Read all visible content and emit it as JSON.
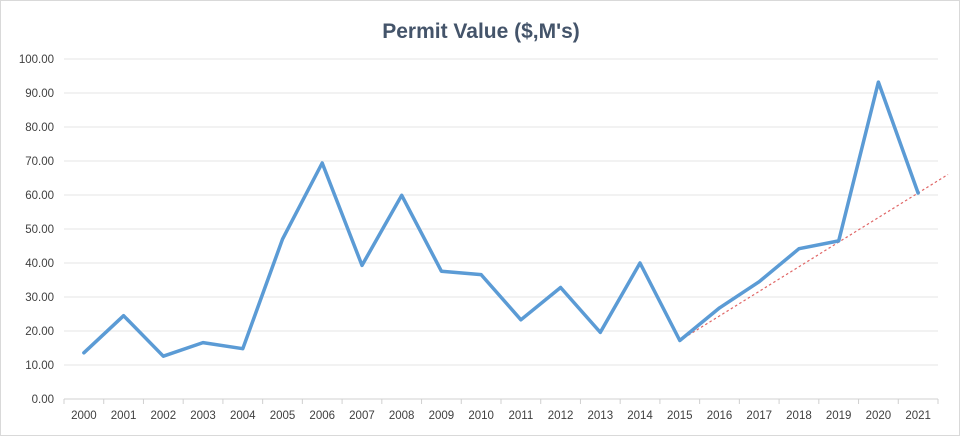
{
  "chart_data": {
    "type": "line",
    "title": "Permit Value ($,M's)",
    "xlabel": "",
    "ylabel": "",
    "categories": [
      "2000",
      "2001",
      "2002",
      "2003",
      "2004",
      "2005",
      "2006",
      "2007",
      "2008",
      "2009",
      "2010",
      "2011",
      "2012",
      "2013",
      "2014",
      "2015",
      "2016",
      "2017",
      "2018",
      "2019",
      "2020",
      "2021"
    ],
    "series": [
      {
        "values": [
          13.6,
          24.5,
          12.6,
          16.6,
          14.8,
          47.0,
          69.4,
          39.3,
          59.9,
          37.6,
          36.6,
          23.3,
          32.8,
          19.6,
          40.0,
          17.2,
          26.8,
          34.5,
          44.2,
          46.5,
          93.2,
          60.6
        ],
        "color": "#5b9bd5"
      }
    ],
    "trendline": {
      "style": "dotted",
      "color": "#e06666",
      "start": {
        "x": "2015",
        "y": 17.2
      },
      "end": {
        "x": "2021",
        "y": 60.6
      },
      "extends_beyond_last_category": true
    },
    "ylim": [
      0,
      100
    ],
    "yticks": [
      "0.00",
      "10.00",
      "20.00",
      "30.00",
      "40.00",
      "50.00",
      "60.00",
      "70.00",
      "80.00",
      "90.00",
      "100.00"
    ],
    "grid": true,
    "legend": "none"
  }
}
